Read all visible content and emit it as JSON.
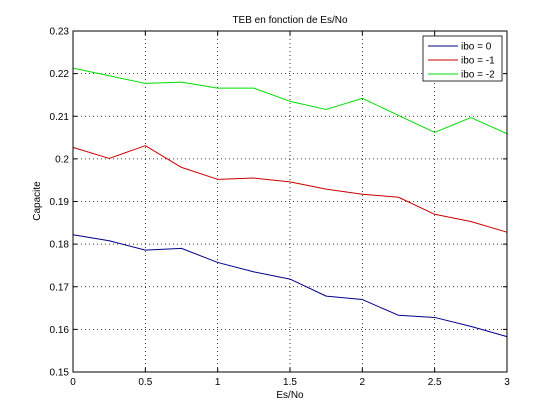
{
  "chart_data": {
    "type": "line",
    "title": "TEB en fonction de Es/No",
    "xlabel": "Es/No",
    "ylabel": "Capacite",
    "xlim": [
      0,
      3
    ],
    "ylim": [
      0.15,
      0.23
    ],
    "xticks": [
      0,
      0.5,
      1,
      1.5,
      2,
      2.5,
      3
    ],
    "xtick_labels": [
      "0",
      "0.5",
      "1",
      "1.5",
      "2",
      "2.5",
      "3"
    ],
    "yticks": [
      0.15,
      0.16,
      0.17,
      0.18,
      0.19,
      0.2,
      0.21,
      0.22,
      0.23
    ],
    "ytick_labels": [
      "0.15",
      "0.16",
      "0.17",
      "0.18",
      "0.19",
      "0.2",
      "0.21",
      "0.22",
      "0.23"
    ],
    "grid": true,
    "grid_style": "dotted",
    "legend_position": "top-right",
    "x": [
      0,
      0.25,
      0.5,
      0.75,
      1,
      1.25,
      1.5,
      1.75,
      2,
      2.25,
      2.5,
      2.75,
      3
    ],
    "series": [
      {
        "name": "ibo = 0",
        "color": "#00008b",
        "values": [
          0.1822,
          0.1808,
          0.1786,
          0.179,
          0.1757,
          0.1735,
          0.1718,
          0.1678,
          0.167,
          0.1633,
          0.1628,
          0.1607,
          0.1583
        ]
      },
      {
        "name": "ibo = -1",
        "color": "#cc0000",
        "values": [
          0.2027,
          0.2001,
          0.2031,
          0.198,
          0.1952,
          0.1955,
          0.1946,
          0.1929,
          0.1917,
          0.191,
          0.187,
          0.1853,
          0.1828
        ]
      },
      {
        "name": "ibo = -2",
        "color": "#00dd00",
        "values": [
          0.2213,
          0.2195,
          0.2177,
          0.218,
          0.2166,
          0.2166,
          0.2135,
          0.2116,
          0.2142,
          0.2102,
          0.2062,
          0.2097,
          0.2059
        ]
      }
    ]
  }
}
